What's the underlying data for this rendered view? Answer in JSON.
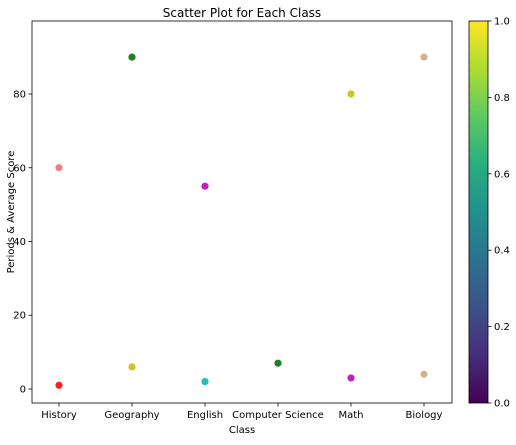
{
  "chart_data": {
    "type": "scatter",
    "title": "Scatter Plot for Each Class",
    "xlabel": "Class",
    "ylabel": "Periods & Average Score",
    "categories": [
      "History",
      "Geography",
      "English",
      "Computer Science",
      "Math",
      "Biology"
    ],
    "ylim": [
      -3.8,
      99.8
    ],
    "yticks": [
      0,
      20,
      40,
      60,
      80
    ],
    "grid": false,
    "points": [
      {
        "category": "History",
        "y": 1,
        "color": "#ff2020"
      },
      {
        "category": "History",
        "y": 60,
        "color": "#f08080"
      },
      {
        "category": "Geography",
        "y": 6,
        "color": "#c8c820"
      },
      {
        "category": "Geography",
        "y": 90,
        "color": "#208020"
      },
      {
        "category": "English",
        "y": 2,
        "color": "#20c0c0"
      },
      {
        "category": "English",
        "y": 55,
        "color": "#c020c0"
      },
      {
        "category": "Computer Science",
        "y": 7,
        "color": "#208020"
      },
      {
        "category": "Math",
        "y": 3,
        "color": "#c020c0"
      },
      {
        "category": "Math",
        "y": 80,
        "color": "#c8c820"
      },
      {
        "category": "Biology",
        "y": 4,
        "color": "#d2b48c"
      },
      {
        "category": "Biology",
        "y": 90,
        "color": "#d2b48c"
      }
    ],
    "colorbar": {
      "colormap": "viridis",
      "range": [
        0,
        1
      ],
      "ticks": [
        "0.0",
        "0.2",
        "0.4",
        "0.6",
        "0.8",
        "1.0"
      ]
    }
  }
}
